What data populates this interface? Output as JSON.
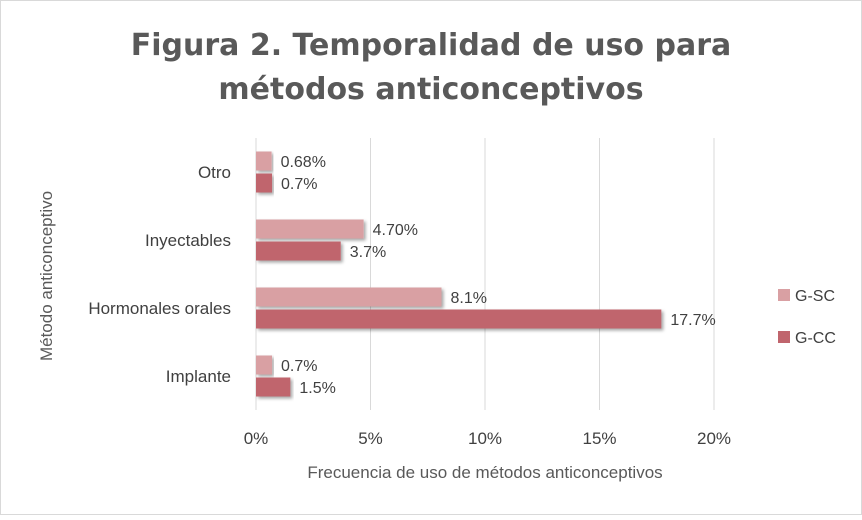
{
  "chart_data": {
    "type": "bar",
    "orientation": "horizontal",
    "title_lines": [
      "Figura 2. Temporalidad  de uso para",
      "métodos  anticonceptivos"
    ],
    "xlabel": "Frecuencia de uso de métodos anticonceptivos",
    "ylabel": "Método anticonceptivo",
    "categories": [
      "Otro",
      "Inyectables",
      "Hormonales orales",
      "Implante"
    ],
    "series": [
      {
        "name": "G-SC",
        "color": "#d9a0a3",
        "values": [
          0.68,
          4.7,
          8.1,
          0.7
        ],
        "labels": [
          "0.68%",
          "4.70%",
          "8.1%",
          "0.7%"
        ]
      },
      {
        "name": "G-CC",
        "color": "#c0656d",
        "values": [
          0.7,
          3.7,
          17.7,
          1.5
        ],
        "labels": [
          "0.7%",
          "3.7%",
          "17.7%",
          "1.5%"
        ]
      }
    ],
    "xlim": [
      0,
      20
    ],
    "xticks": [
      0,
      5,
      10,
      15,
      20
    ],
    "xtick_labels": [
      "0%",
      "5%",
      "10%",
      "15%",
      "20%"
    ],
    "grid": true,
    "legend_position": "right"
  }
}
